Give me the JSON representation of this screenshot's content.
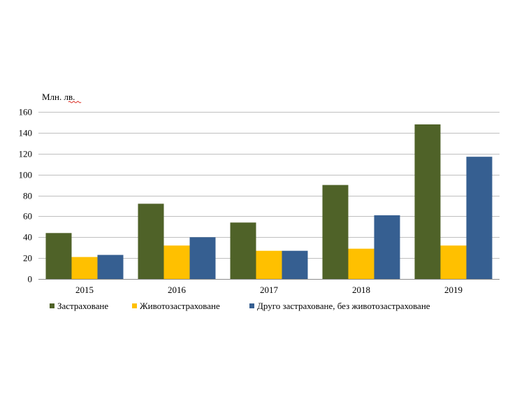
{
  "chart_data": {
    "type": "bar",
    "unit_label": "Млн. лв.",
    "categories": [
      "2015",
      "2016",
      "2017",
      "2018",
      "2019"
    ],
    "series": [
      {
        "name": "Застраховане",
        "color": "#4f6228",
        "values": [
          44,
          72,
          54,
          90,
          148
        ]
      },
      {
        "name": "Животозастраховане",
        "color": "#ffc000",
        "values": [
          21,
          32,
          27,
          29,
          32
        ]
      },
      {
        "name": "Друго застраховане, без животозастраховане",
        "color": "#365f91",
        "values": [
          23,
          40,
          27,
          61,
          117
        ]
      }
    ],
    "ylim": [
      0,
      160
    ],
    "yticks": [
      0,
      20,
      40,
      60,
      80,
      100,
      120,
      140,
      160
    ],
    "grid": true,
    "legend_position": "bottom"
  }
}
